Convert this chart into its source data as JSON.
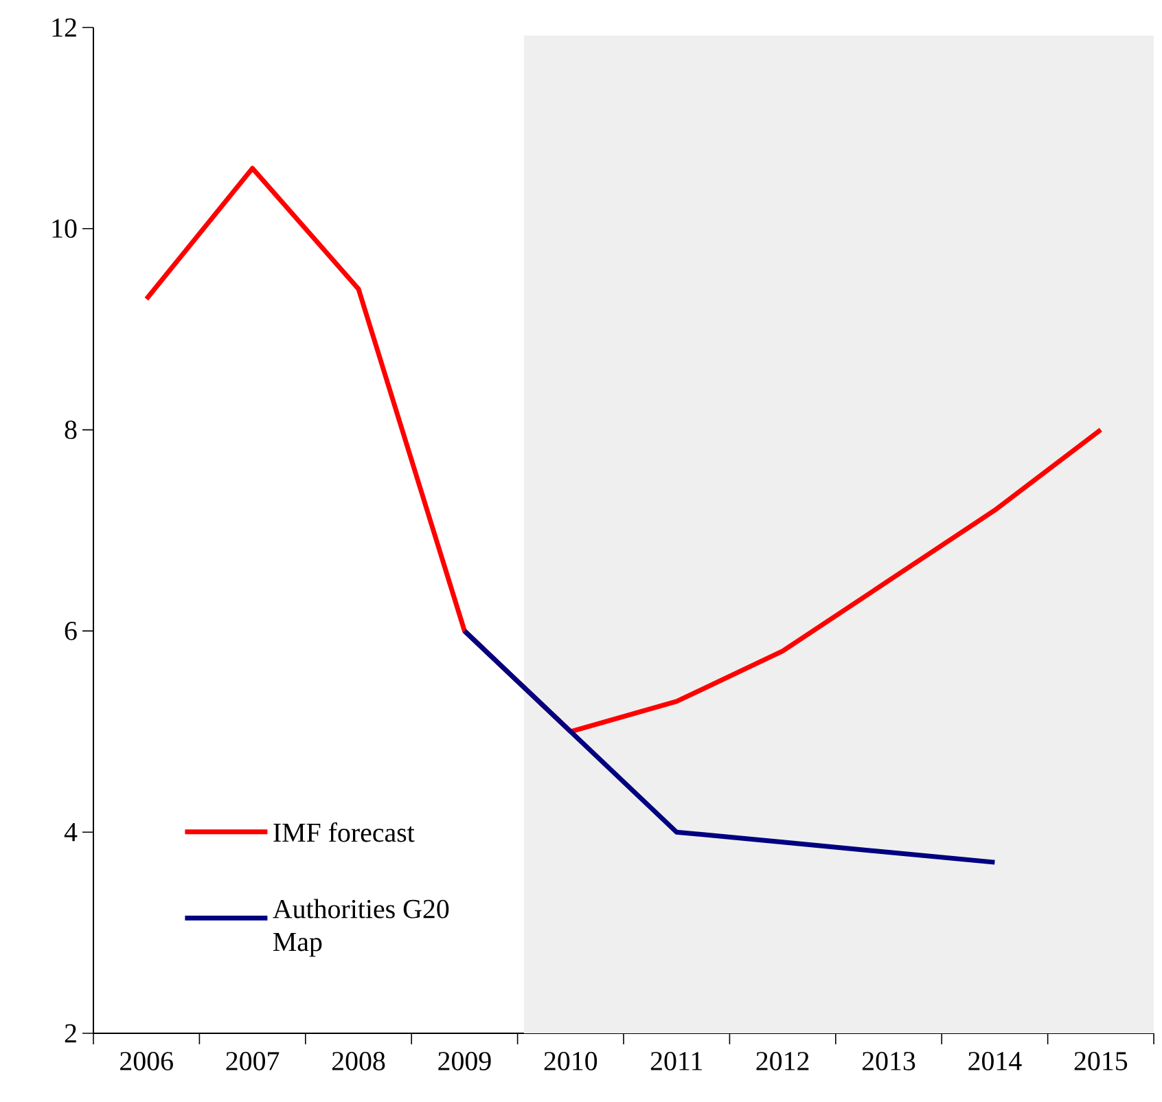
{
  "chart_data": {
    "type": "line",
    "categories": [
      "2006",
      "2007",
      "2008",
      "2009",
      "2010",
      "2011",
      "2012",
      "2013",
      "2014",
      "2015"
    ],
    "series": [
      {
        "name": "IMF forecast",
        "color": "#ff0000",
        "values": [
          9.3,
          10.6,
          9.4,
          6.0,
          5.0,
          5.3,
          5.8,
          6.5,
          7.2,
          8.0
        ]
      },
      {
        "name": "Authorities G20 Map",
        "color": "#000080",
        "values": [
          null,
          null,
          null,
          6.0,
          5.0,
          4.0,
          3.9,
          3.8,
          3.7,
          null
        ]
      }
    ],
    "ylim": [
      2,
      12
    ],
    "yticks": [
      2,
      4,
      6,
      8,
      10,
      12
    ],
    "bands": [
      {
        "axis": "x",
        "from": "2010",
        "to": "2015",
        "color": "#efefef"
      }
    ],
    "legend": "bottom left",
    "grid": false,
    "marker": "none",
    "line_style": "solid"
  }
}
